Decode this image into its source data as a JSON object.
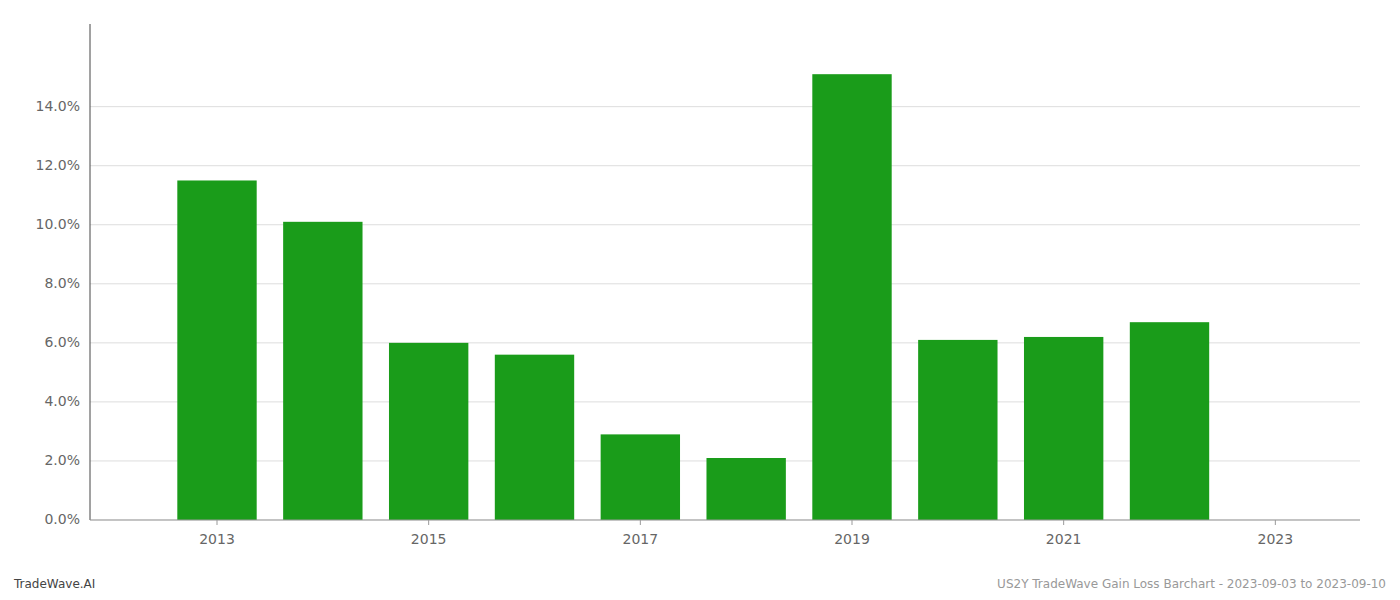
{
  "chart_data": {
    "type": "bar",
    "x": [
      2013,
      2014,
      2015,
      2016,
      2017,
      2018,
      2019,
      2020,
      2021,
      2022
    ],
    "values": [
      0.115,
      0.101,
      0.06,
      0.056,
      0.029,
      0.021,
      0.151,
      0.061,
      0.062,
      0.067
    ],
    "color": "#1a9c1a",
    "xlim": [
      2011.8,
      2023.8
    ],
    "xticks": [
      2013,
      2015,
      2017,
      2019,
      2021,
      2023
    ],
    "ylim": [
      0,
      0.168
    ],
    "yticks": [
      {
        "value": 0.0,
        "label": "0.0%"
      },
      {
        "value": 0.02,
        "label": "2.0%"
      },
      {
        "value": 0.04,
        "label": "4.0%"
      },
      {
        "value": 0.06,
        "label": "6.0%"
      },
      {
        "value": 0.08,
        "label": "8.0%"
      },
      {
        "value": 0.1,
        "label": "10.0%"
      },
      {
        "value": 0.12,
        "label": "12.0%"
      },
      {
        "value": 0.14,
        "label": "14.0%"
      }
    ],
    "grid": true,
    "annotations": [
      "TradeWave.AI",
      "US2Y TradeWave Gain Loss Barchart - 2023-09-03 to 2023-09-10"
    ]
  }
}
